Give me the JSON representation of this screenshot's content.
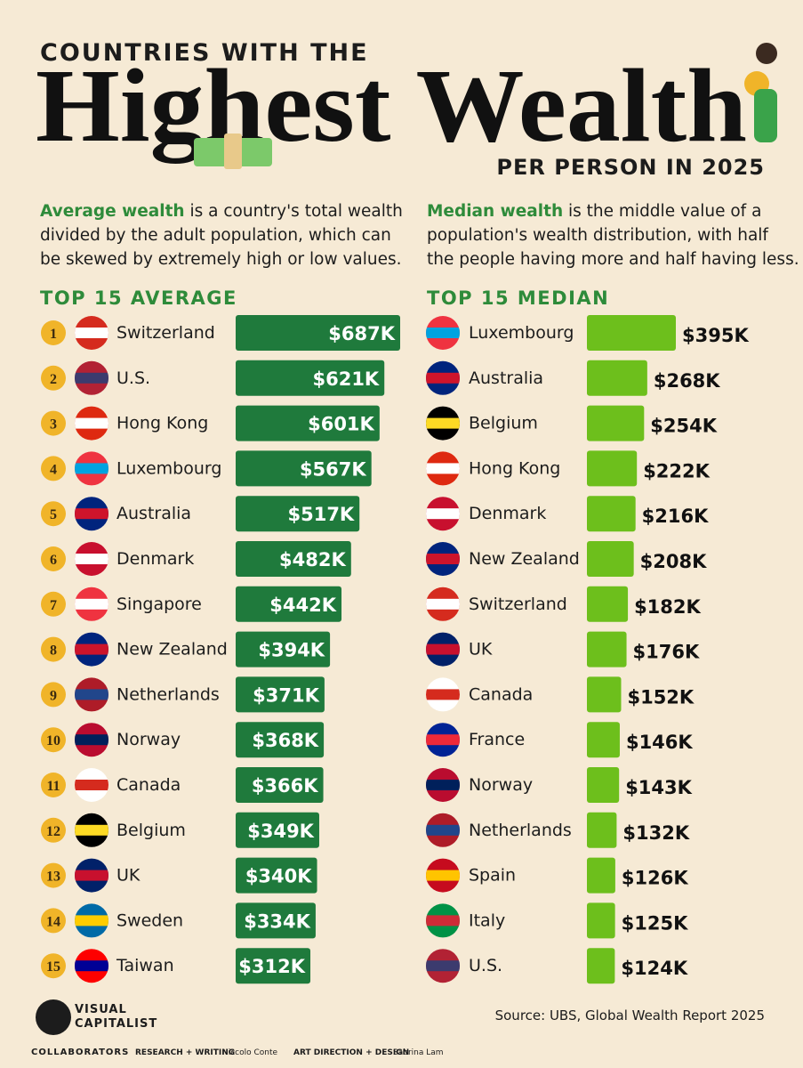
{
  "header": {
    "kicker": "COUNTRIES WITH THE",
    "title": "Highest Wealth",
    "subtitle": "PER PERSON IN 2025"
  },
  "notes": [
    {
      "lead": "Average wealth",
      "text": " is a country's total wealth divided by the adult population, which can be skewed by extremely high or low values."
    },
    {
      "lead": "Median wealth",
      "text": " is the middle value of a population's wealth distribution, with half the people having more and half having less."
    }
  ],
  "chart_data": [
    {
      "type": "bar",
      "orientation": "horizontal",
      "title": "TOP 15 AVERAGE",
      "ranks": [
        1,
        2,
        3,
        4,
        5,
        6,
        7,
        8,
        9,
        10,
        11,
        12,
        13,
        14,
        15
      ],
      "categories": [
        "Switzerland",
        "U.S.",
        "Hong Kong",
        "Luxembourg",
        "Australia",
        "Denmark",
        "Singapore",
        "New Zealand",
        "Netherlands",
        "Norway",
        "Canada",
        "Belgium",
        "UK",
        "Sweden",
        "Taiwan"
      ],
      "values": [
        687,
        621,
        601,
        567,
        517,
        482,
        442,
        394,
        371,
        368,
        366,
        349,
        340,
        334,
        312
      ],
      "value_labels": [
        "$687K",
        "$621K",
        "$601K",
        "$567K",
        "$517K",
        "$482K",
        "$442K",
        "$394K",
        "$371K",
        "$368K",
        "$366K",
        "$349K",
        "$340K",
        "$334K",
        "$312K"
      ],
      "color": "#1f7a3c",
      "label_position": "inside",
      "flags": [
        [
          "#d52b1e",
          "#ffffff"
        ],
        [
          "#b22234",
          "#3c3b6e"
        ],
        [
          "#de2910",
          "#ffffff"
        ],
        [
          "#ef3340",
          "#00a3e0"
        ],
        [
          "#00247d",
          "#cf142b"
        ],
        [
          "#c8102e",
          "#ffffff"
        ],
        [
          "#ef3340",
          "#ffffff"
        ],
        [
          "#00247d",
          "#cc142b"
        ],
        [
          "#ae1c28",
          "#21468b"
        ],
        [
          "#ba0c2f",
          "#00205b"
        ],
        [
          "#ffffff",
          "#d52b1e"
        ],
        [
          "#000000",
          "#fdda24"
        ],
        [
          "#012169",
          "#c8102e"
        ],
        [
          "#006aa7",
          "#fecc00"
        ],
        [
          "#fe0000",
          "#000095"
        ]
      ]
    },
    {
      "type": "bar",
      "orientation": "horizontal",
      "title": "TOP 15 MEDIAN",
      "categories": [
        "Luxembourg",
        "Australia",
        "Belgium",
        "Hong Kong",
        "Denmark",
        "New Zealand",
        "Switzerland",
        "UK",
        "Canada",
        "France",
        "Norway",
        "Netherlands",
        "Spain",
        "Italy",
        "U.S."
      ],
      "values": [
        395,
        268,
        254,
        222,
        216,
        208,
        182,
        176,
        152,
        146,
        143,
        132,
        126,
        125,
        124
      ],
      "value_labels": [
        "$395K",
        "$268K",
        "$254K",
        "$222K",
        "$216K",
        "$208K",
        "$182K",
        "$176K",
        "$152K",
        "$146K",
        "$143K",
        "$132K",
        "$126K",
        "$125K",
        "$124K"
      ],
      "color": "#6dbf1c",
      "label_position": "outside",
      "flags": [
        [
          "#ef3340",
          "#00a3e0"
        ],
        [
          "#00247d",
          "#cf142b"
        ],
        [
          "#000000",
          "#fdda24"
        ],
        [
          "#de2910",
          "#ffffff"
        ],
        [
          "#c8102e",
          "#ffffff"
        ],
        [
          "#00247d",
          "#cc142b"
        ],
        [
          "#d52b1e",
          "#ffffff"
        ],
        [
          "#012169",
          "#c8102e"
        ],
        [
          "#ffffff",
          "#d52b1e"
        ],
        [
          "#002395",
          "#ed2939"
        ],
        [
          "#ba0c2f",
          "#00205b"
        ],
        [
          "#ae1c28",
          "#21468b"
        ],
        [
          "#c60b1e",
          "#ffc400"
        ],
        [
          "#009246",
          "#ce2b37"
        ],
        [
          "#b22234",
          "#3c3b6e"
        ]
      ]
    }
  ],
  "footer": {
    "logo": [
      "VISUAL",
      "CAPITALIST"
    ],
    "collaborators": "COLLABORATORS",
    "research_label": "RESEARCH + WRITING",
    "research_name": "Niccolo Conte",
    "design_label": "ART DIRECTION + DESIGN",
    "design_name": "Sabrina Lam",
    "source": "Source: UBS, Global Wealth Report 2025"
  }
}
